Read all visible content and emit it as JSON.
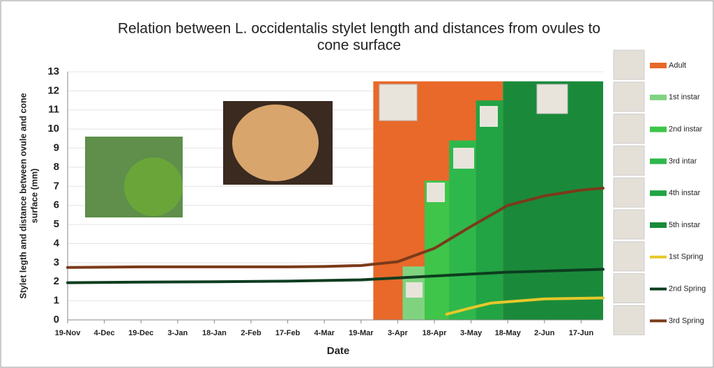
{
  "chart_data": {
    "type": "line",
    "title": [
      "Relation between L. occidentalis stylet length and distances from ovules to",
      "cone surface"
    ],
    "x_label": "Date",
    "y_label": [
      "Stylet legth and distance between ovule and cone",
      "surface (mm)"
    ],
    "xlim": [
      0,
      219
    ],
    "xticks": [
      {
        "value": 0,
        "label": "19-Nov"
      },
      {
        "value": 15,
        "label": "4-Dec"
      },
      {
        "value": 30,
        "label": "19-Dec"
      },
      {
        "value": 45,
        "label": "3-Jan"
      },
      {
        "value": 60,
        "label": "18-Jan"
      },
      {
        "value": 75,
        "label": "2-Feb"
      },
      {
        "value": 90,
        "label": "17-Feb"
      },
      {
        "value": 105,
        "label": "4-Mar"
      },
      {
        "value": 120,
        "label": "19-Mar"
      },
      {
        "value": 135,
        "label": "3-Apr"
      },
      {
        "value": 150,
        "label": "18-Apr"
      },
      {
        "value": 165,
        "label": "3-May"
      },
      {
        "value": 180,
        "label": "18-May"
      },
      {
        "value": 195,
        "label": "2-Jun"
      },
      {
        "value": 210,
        "label": "17-Jun"
      }
    ],
    "ylim": [
      0,
      13
    ],
    "yticks": [
      0,
      1,
      2,
      3,
      4,
      5,
      6,
      7,
      8,
      9,
      10,
      11,
      12,
      13
    ],
    "grid": true,
    "periods": [
      {
        "name": "Adult",
        "color": "#e8692a",
        "start": 125,
        "end": 178,
        "top": 12.5
      },
      {
        "name": "1st instar",
        "color": "#7fd37f",
        "start": 137,
        "end": 146,
        "top": 2.8
      },
      {
        "name": "2nd instar",
        "color": "#3fc54a",
        "start": 146,
        "end": 156,
        "top": 7.3
      },
      {
        "name": "3rd intar",
        "color": "#2eb84c",
        "start": 156,
        "end": 167,
        "top": 9.4
      },
      {
        "name": "4th instar",
        "color": "#22a344",
        "start": 167,
        "end": 178,
        "top": 11.5
      },
      {
        "name": "5th instar",
        "color": "#1a8a3a",
        "start": 178,
        "end": 219,
        "top": 12.5
      }
    ],
    "series": [
      {
        "name": "1st Spring",
        "color": "#e6c82a",
        "x": [
          155,
          164,
          173,
          185,
          195,
          210,
          219
        ],
        "values": [
          0.3,
          0.6,
          0.88,
          1.0,
          1.1,
          1.13,
          1.15
        ]
      },
      {
        "name": "2nd Spring",
        "color": "#0d3d1f",
        "x": [
          0,
          30,
          60,
          90,
          120,
          150,
          180,
          219
        ],
        "values": [
          1.95,
          1.98,
          2.0,
          2.03,
          2.1,
          2.3,
          2.5,
          2.65
        ]
      },
      {
        "name": "3rd Spring",
        "color": "#7b3a1a",
        "x": [
          0,
          30,
          60,
          90,
          105,
          120,
          135,
          150,
          165,
          180,
          195,
          210,
          219
        ],
        "values": [
          2.75,
          2.78,
          2.78,
          2.78,
          2.8,
          2.85,
          3.05,
          3.75,
          4.9,
          6.0,
          6.5,
          6.8,
          6.9
        ]
      }
    ]
  }
}
